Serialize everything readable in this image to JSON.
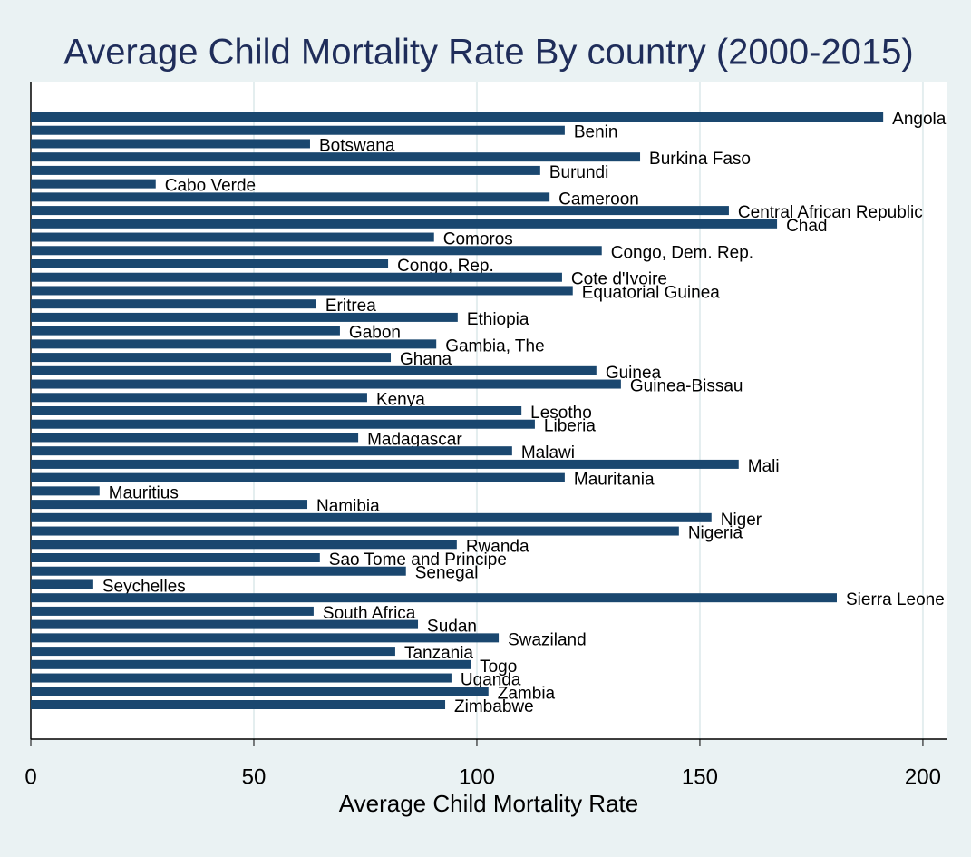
{
  "chart_data": {
    "type": "hbar",
    "title": "Average Child Mortality Rate By country (2000-2015)",
    "x_label": "Average Child Mortality Rate",
    "color": "#1a476f",
    "grid": true,
    "xlim": [
      0,
      205.5
    ],
    "xticks": [
      0,
      50,
      100,
      150,
      200
    ],
    "categories": [
      "Angola",
      "Benin",
      "Botswana",
      "Burkina Faso",
      "Burundi",
      "Cabo Verde",
      "Cameroon",
      "Central African Republic",
      "Chad",
      "Comoros",
      "Congo, Dem. Rep.",
      "Congo, Rep.",
      "Cote d'Ivoire",
      "Equatorial Guinea",
      "Eritrea",
      "Ethiopia",
      "Gabon",
      "Gambia, The",
      "Ghana",
      "Guinea",
      "Guinea-Bissau",
      "Kenya",
      "Lesotho",
      "Liberia",
      "Madagascar",
      "Malawi",
      "Mali",
      "Mauritania",
      "Mauritius",
      "Namibia",
      "Niger",
      "Nigeria",
      "Rwanda",
      "Sao Tome and Principe",
      "Senegal",
      "Seychelles",
      "Sierra Leone",
      "South Africa",
      "Sudan",
      "Swaziland",
      "Tanzania",
      "Togo",
      "Uganda",
      "Zambia",
      "Zimbabwe"
    ],
    "values": [
      191.1,
      119.7,
      62.6,
      136.6,
      114.2,
      28.0,
      116.3,
      156.5,
      167.3,
      90.4,
      128.0,
      80.1,
      119.1,
      121.5,
      64.0,
      95.7,
      69.3,
      90.9,
      80.7,
      126.8,
      132.3,
      75.4,
      110.0,
      113.0,
      73.4,
      107.9,
      158.7,
      119.7,
      15.4,
      62.0,
      152.6,
      145.3,
      95.5,
      64.8,
      84.1,
      14.0,
      180.7,
      63.4,
      86.8,
      104.9,
      81.7,
      98.6,
      94.3,
      102.6,
      92.9
    ]
  }
}
